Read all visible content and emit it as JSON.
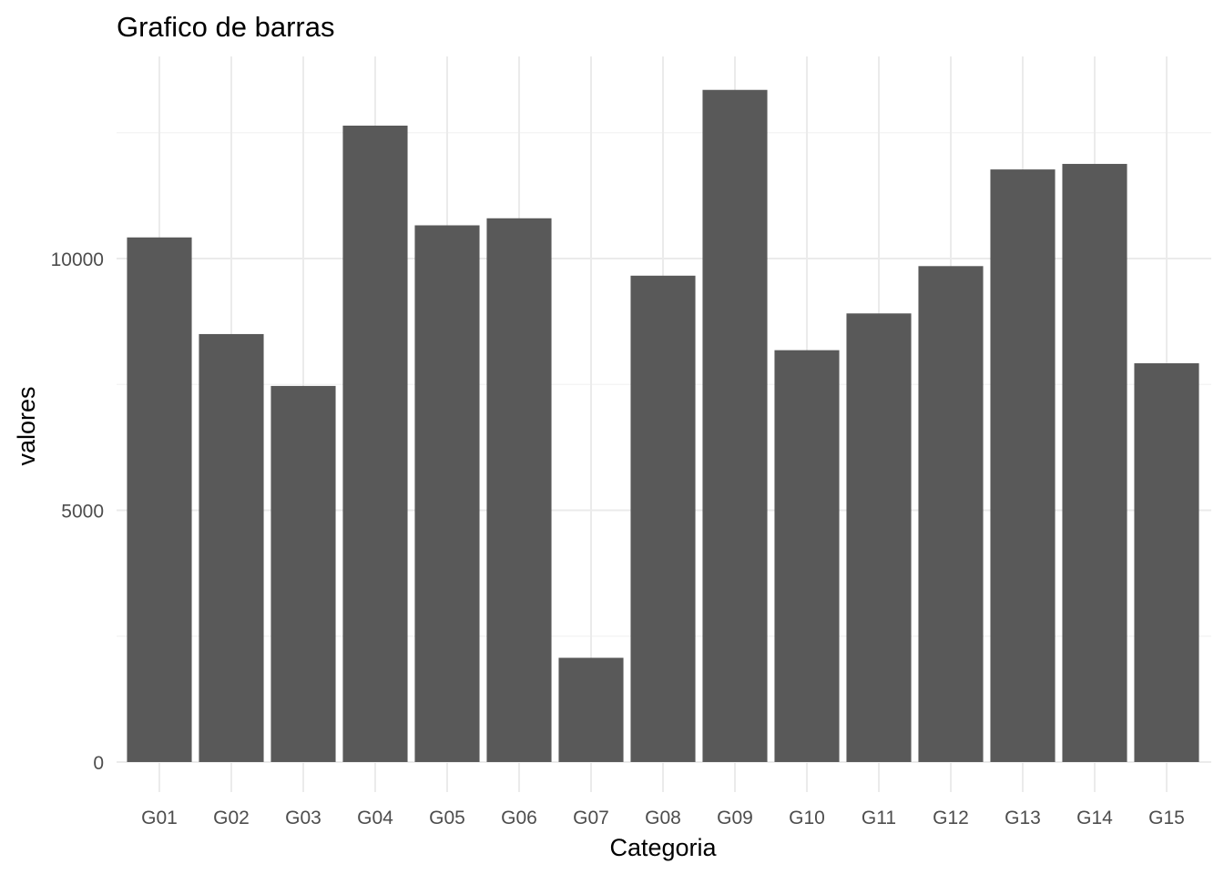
{
  "chart_data": {
    "type": "bar",
    "title": "Grafico de barras",
    "xlabel": "Categoria",
    "ylabel": "valores",
    "categories": [
      "G01",
      "G02",
      "G03",
      "G04",
      "G05",
      "G06",
      "G07",
      "G08",
      "G09",
      "G10",
      "G11",
      "G12",
      "G13",
      "G14",
      "G15"
    ],
    "values": [
      10420,
      8500,
      7470,
      12640,
      10660,
      10800,
      2070,
      9660,
      13350,
      8180,
      8910,
      9850,
      11770,
      11880,
      7920
    ],
    "yticks": [
      0,
      5000,
      10000
    ],
    "ytick_labels": [
      "0",
      "5000",
      "10000"
    ],
    "ylim": [
      -650,
      14000
    ],
    "grid": true,
    "legend": "none",
    "bar_color": "#595959",
    "grid_color": "#ebebeb",
    "background": "#ffffff"
  }
}
